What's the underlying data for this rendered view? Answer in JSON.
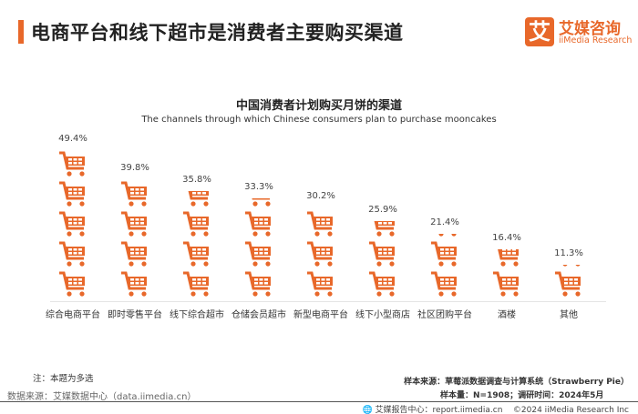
{
  "header": {
    "title": "电商平台和线下超市是消费者主要购买渠道",
    "logo_mark": "艾",
    "logo_cn": "艾媒咨询",
    "logo_en": "iiMedia Research"
  },
  "chart_data": {
    "type": "bar",
    "style": "pictogram",
    "icon": "shopping-cart-icon",
    "unit_per_icon": 10,
    "title": "中国消费者计划购买月饼的渠道",
    "subtitle": "The channels through which Chinese consumers plan to purchase mooncakes",
    "categories": [
      "综合电商平台",
      "即时零售平台",
      "线下综合超市",
      "仓储会员超市",
      "新型电商平台",
      "线下小型商店",
      "社区团购平台",
      "酒楼",
      "其他"
    ],
    "values": [
      49.4,
      39.8,
      35.8,
      33.3,
      30.2,
      25.9,
      21.4,
      16.4,
      11.3
    ],
    "data_labels": [
      "49.4%",
      "39.8%",
      "35.8%",
      "33.3%",
      "30.2%",
      "25.9%",
      "21.4%",
      "16.4%",
      "11.3%"
    ],
    "ylim": [
      0,
      50
    ],
    "color": "#e8682a"
  },
  "footer": {
    "note": "注：本题为多选",
    "source": "数据来源：艾媒数据中心（data.iimedia.cn）",
    "sample_source": "样本来源：草莓派数据调查与计算系统（Strawberry Pie）",
    "sample_info": "样本量：N=1908；调研时间：2024年5月",
    "report_center": "艾媒报告中心：report.iimedia.cn",
    "copyright": "©2024  iiMedia Research  Inc"
  }
}
